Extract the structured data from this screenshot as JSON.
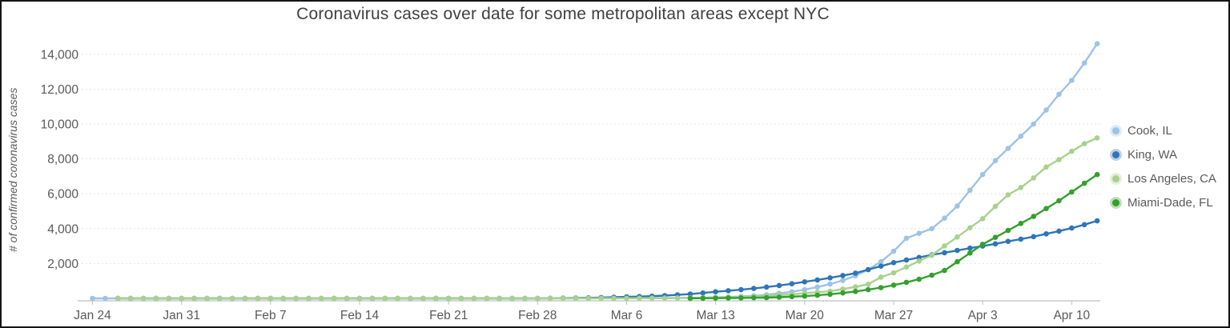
{
  "chart_data": {
    "type": "line",
    "title": "Coronavirus cases over date for some metropolitan areas except NYC",
    "ylabel": "# of confirmed coronavirus cases",
    "xlabel": "",
    "ylim": [
      0,
      15000
    ],
    "grid": true,
    "legend_position": "right",
    "y_ticks": [
      {
        "label": "2,000",
        "value": 2000
      },
      {
        "label": "4,000",
        "value": 4000
      },
      {
        "label": "6,000",
        "value": 6000
      },
      {
        "label": "8,000",
        "value": 8000
      },
      {
        "label": "10,000",
        "value": 10000
      },
      {
        "label": "12,000",
        "value": 12000
      },
      {
        "label": "14,000",
        "value": 14000
      }
    ],
    "x_tick_labels": [
      {
        "label": "Jan 24",
        "day": 0
      },
      {
        "label": "Jan 31",
        "day": 7
      },
      {
        "label": "Feb 7",
        "day": 14
      },
      {
        "label": "Feb 14",
        "day": 21
      },
      {
        "label": "Feb 21",
        "day": 28
      },
      {
        "label": "Feb 28",
        "day": 35
      },
      {
        "label": "Mar 6",
        "day": 42
      },
      {
        "label": "Mar 13",
        "day": 49
      },
      {
        "label": "Mar 20",
        "day": 56
      },
      {
        "label": "Mar 27",
        "day": 63
      },
      {
        "label": "Apr 3",
        "day": 70
      },
      {
        "label": "Apr 10",
        "day": 77
      }
    ],
    "dates": [
      "Jan 24",
      "Jan 25",
      "Jan 26",
      "Jan 27",
      "Jan 28",
      "Jan 29",
      "Jan 30",
      "Jan 31",
      "Feb 1",
      "Feb 2",
      "Feb 3",
      "Feb 4",
      "Feb 5",
      "Feb 6",
      "Feb 7",
      "Feb 8",
      "Feb 9",
      "Feb 10",
      "Feb 11",
      "Feb 12",
      "Feb 13",
      "Feb 14",
      "Feb 15",
      "Feb 16",
      "Feb 17",
      "Feb 18",
      "Feb 19",
      "Feb 20",
      "Feb 21",
      "Feb 22",
      "Feb 23",
      "Feb 24",
      "Feb 25",
      "Feb 26",
      "Feb 27",
      "Feb 28",
      "Feb 29",
      "Mar 1",
      "Mar 2",
      "Mar 3",
      "Mar 4",
      "Mar 5",
      "Mar 6",
      "Mar 7",
      "Mar 8",
      "Mar 9",
      "Mar 10",
      "Mar 11",
      "Mar 12",
      "Mar 13",
      "Mar 14",
      "Mar 15",
      "Mar 16",
      "Mar 17",
      "Mar 18",
      "Mar 19",
      "Mar 20",
      "Mar 21",
      "Mar 22",
      "Mar 23",
      "Mar 24",
      "Mar 25",
      "Mar 26",
      "Mar 27",
      "Mar 28",
      "Mar 29",
      "Mar 30",
      "Mar 31",
      "Apr 1",
      "Apr 2",
      "Apr 3",
      "Apr 4",
      "Apr 5",
      "Apr 6",
      "Apr 7",
      "Apr 8",
      "Apr 9",
      "Apr 10",
      "Apr 11",
      "Apr 12"
    ],
    "series": [
      {
        "name": "Cook, IL",
        "color": "#9dc3e6",
        "values": [
          1,
          1,
          1,
          1,
          1,
          1,
          2,
          2,
          2,
          2,
          2,
          2,
          2,
          2,
          2,
          2,
          2,
          2,
          2,
          2,
          2,
          2,
          2,
          2,
          2,
          2,
          2,
          2,
          2,
          2,
          2,
          2,
          2,
          2,
          2,
          2,
          3,
          4,
          4,
          4,
          5,
          6,
          7,
          9,
          12,
          16,
          22,
          30,
          42,
          60,
          82,
          110,
          150,
          210,
          290,
          380,
          500,
          650,
          820,
          1030,
          1300,
          1650,
          2100,
          2700,
          3450,
          3730,
          4000,
          4600,
          5300,
          6200,
          7100,
          7900,
          8600,
          9300,
          10000,
          10800,
          11700,
          12500,
          13500,
          14600
        ]
      },
      {
        "name": "King, WA",
        "color": "#2e75b6",
        "values": [
          null,
          null,
          1,
          1,
          1,
          1,
          1,
          1,
          1,
          1,
          1,
          1,
          1,
          1,
          1,
          1,
          1,
          1,
          1,
          1,
          1,
          1,
          1,
          1,
          1,
          1,
          1,
          1,
          1,
          1,
          1,
          1,
          1,
          1,
          1,
          2,
          6,
          14,
          21,
          32,
          51,
          70,
          85,
          105,
          130,
          160,
          200,
          250,
          310,
          380,
          440,
          500,
          570,
          650,
          740,
          840,
          950,
          1060,
          1180,
          1310,
          1450,
          1650,
          1850,
          2050,
          2200,
          2350,
          2500,
          2620,
          2750,
          2880,
          3000,
          3130,
          3270,
          3400,
          3540,
          3700,
          3860,
          4030,
          4230,
          4450
        ]
      },
      {
        "name": "Los Angeles, CA",
        "color": "#a9d18e",
        "values": [
          null,
          null,
          1,
          1,
          1,
          1,
          1,
          1,
          1,
          1,
          1,
          1,
          1,
          1,
          1,
          1,
          1,
          1,
          1,
          1,
          1,
          1,
          1,
          1,
          1,
          1,
          1,
          1,
          1,
          1,
          1,
          1,
          1,
          1,
          1,
          1,
          1,
          2,
          3,
          5,
          7,
          9,
          11,
          14,
          17,
          20,
          27,
          32,
          40,
          53,
          64,
          69,
          94,
          144,
          190,
          231,
          292,
          351,
          409,
          536,
          662,
          812,
          1220,
          1470,
          1800,
          2140,
          2470,
          3010,
          3520,
          4050,
          4570,
          5280,
          5940,
          6360,
          6910,
          7530,
          7960,
          8430,
          8870,
          9200
        ]
      },
      {
        "name": "Miami-Dade, FL",
        "color": "#33a02c",
        "values": [
          null,
          null,
          null,
          null,
          null,
          null,
          null,
          null,
          null,
          null,
          null,
          null,
          null,
          null,
          null,
          null,
          null,
          null,
          null,
          null,
          null,
          null,
          null,
          null,
          null,
          null,
          null,
          null,
          null,
          null,
          null,
          null,
          null,
          null,
          null,
          null,
          null,
          null,
          null,
          null,
          null,
          null,
          null,
          null,
          null,
          null,
          null,
          3,
          8,
          15,
          21,
          28,
          36,
          46,
          70,
          100,
          130,
          180,
          240,
          310,
          400,
          500,
          620,
          760,
          920,
          1100,
          1330,
          1600,
          2100,
          2600,
          3100,
          3500,
          3900,
          4300,
          4700,
          5150,
          5600,
          6100,
          6600,
          7100
        ]
      }
    ]
  }
}
